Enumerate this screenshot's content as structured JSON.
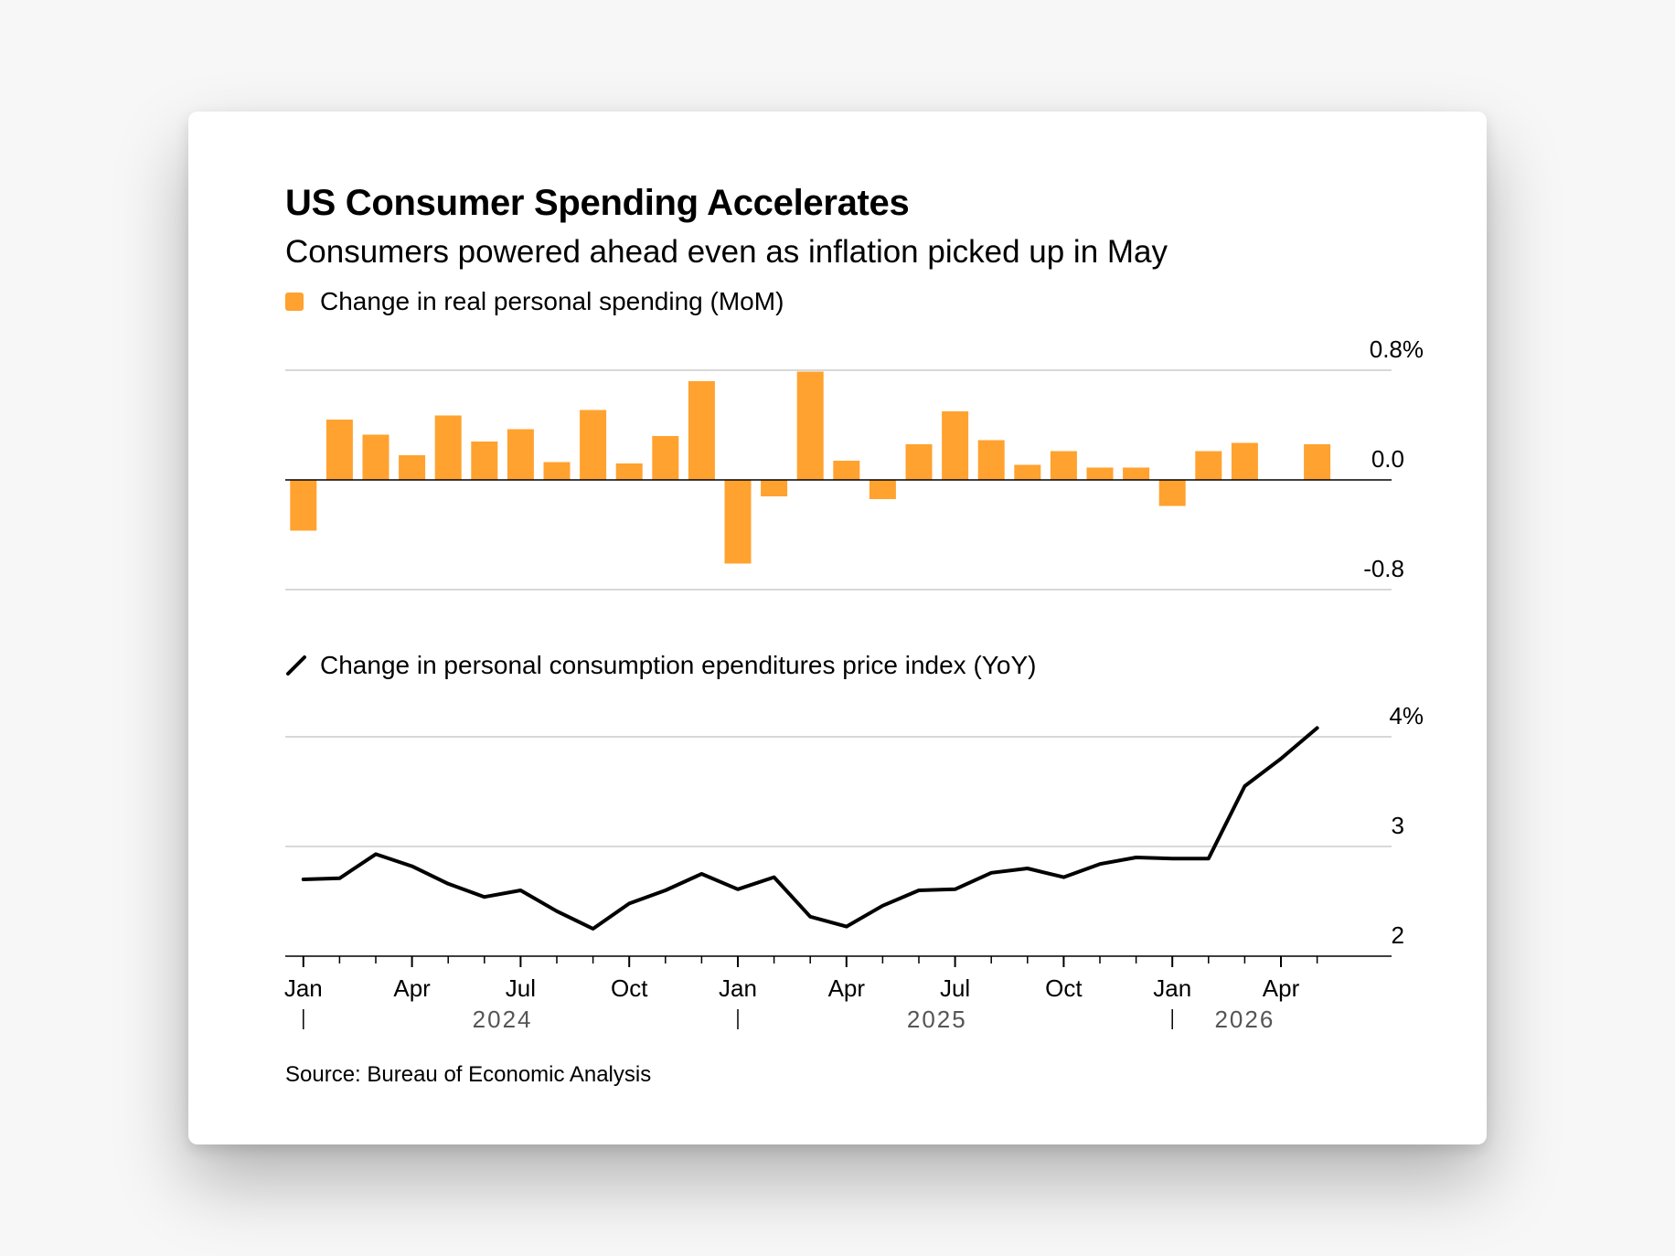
{
  "title": "US Consumer Spending Accelerates",
  "subtitle": "Consumers powered ahead even as inflation picked up in May",
  "source": "Source: Bureau of Economic Analysis",
  "colors": {
    "bar": "#ffa22f",
    "line": "#000000",
    "grid": "#cccccc"
  },
  "chart_data": [
    {
      "type": "bar",
      "legend": "Change in real personal spending (MoM)",
      "yticks": [
        "0.8%",
        "0.0",
        "-0.8"
      ],
      "ylim": [
        -0.8,
        0.8
      ],
      "x": [
        "2024-01",
        "2024-02",
        "2024-03",
        "2024-04",
        "2024-05",
        "2024-06",
        "2024-07",
        "2024-08",
        "2024-09",
        "2024-10",
        "2024-11",
        "2024-12",
        "2025-01",
        "2025-02",
        "2025-03",
        "2025-04",
        "2025-05",
        "2025-06",
        "2025-07",
        "2025-08",
        "2025-09",
        "2025-10",
        "2025-11",
        "2025-12",
        "2026-01",
        "2026-02",
        "2026-03",
        "2026-04",
        "2026-05"
      ],
      "values": [
        -0.37,
        0.44,
        0.33,
        0.18,
        0.47,
        0.28,
        0.37,
        0.13,
        0.51,
        0.12,
        0.32,
        0.72,
        -0.61,
        -0.12,
        0.79,
        0.14,
        -0.14,
        0.26,
        0.5,
        0.29,
        0.11,
        0.21,
        0.09,
        0.09,
        -0.19,
        0.21,
        0.27,
        null,
        0.26
      ]
    },
    {
      "type": "line",
      "legend": "Change in personal consumption ependitures price index (YoY)",
      "yticks": [
        "4%",
        "3",
        "2"
      ],
      "ylim": [
        2,
        4
      ],
      "x": [
        "2024-01",
        "2024-02",
        "2024-03",
        "2024-04",
        "2024-05",
        "2024-06",
        "2024-07",
        "2024-08",
        "2024-09",
        "2024-10",
        "2024-11",
        "2024-12",
        "2025-01",
        "2025-02",
        "2025-03",
        "2025-04",
        "2025-05",
        "2025-06",
        "2025-07",
        "2025-08",
        "2025-09",
        "2025-10",
        "2025-11",
        "2025-12",
        "2026-01",
        "2026-02",
        "2026-03",
        "2026-04",
        "2026-05"
      ],
      "values": [
        2.7,
        2.71,
        2.93,
        2.82,
        2.66,
        2.54,
        2.6,
        2.41,
        2.25,
        2.48,
        2.6,
        2.75,
        2.61,
        2.72,
        2.36,
        2.27,
        2.46,
        2.6,
        2.61,
        2.76,
        2.8,
        2.72,
        2.84,
        2.9,
        2.89,
        2.89,
        3.55,
        3.8,
        4.08
      ],
      "xticks": [
        "Jan",
        "Apr",
        "Jul",
        "Oct",
        "Jan",
        "Apr",
        "Jul",
        "Oct",
        "Jan",
        "Apr"
      ],
      "years": [
        "2024",
        "2025",
        "2026"
      ]
    }
  ]
}
